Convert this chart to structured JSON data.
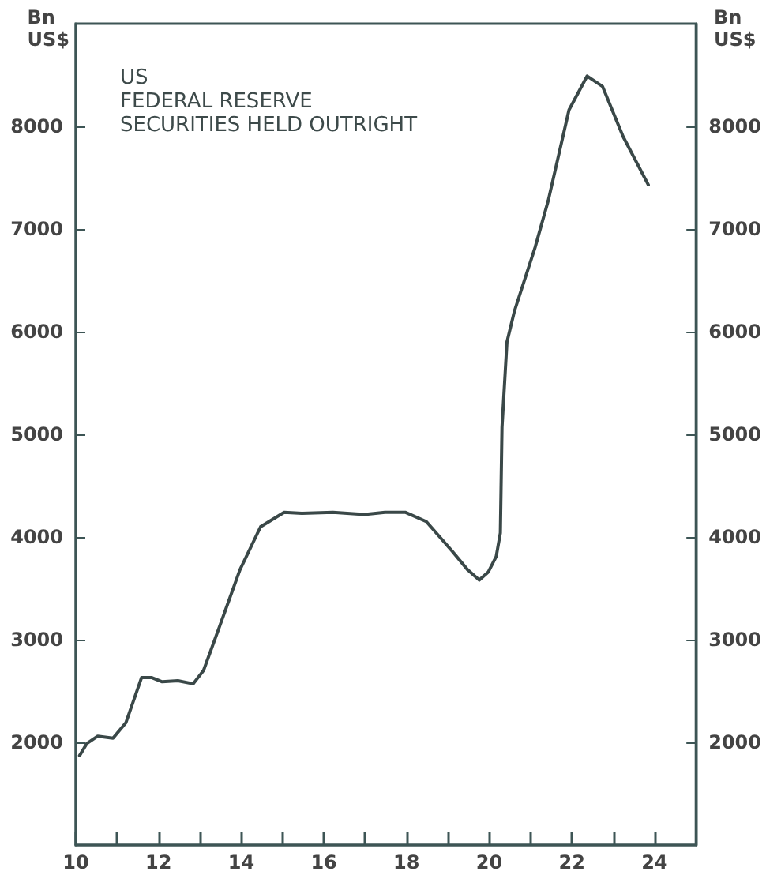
{
  "chart_data": {
    "type": "line",
    "title": "US\nFEDERAL RESERVE\nSECURITIES HELD OUTRIGHT",
    "ylabel": "Bn\nUS$",
    "y2label": "Bn\nUS$",
    "x": [
      10.09,
      10.27,
      10.53,
      10.9,
      11.21,
      11.59,
      11.84,
      12.09,
      12.47,
      12.84,
      13.09,
      13.47,
      13.97,
      14.47,
      15.04,
      15.47,
      16.22,
      16.98,
      17.48,
      17.98,
      18.48,
      19.11,
      19.48,
      19.76,
      19.98,
      20.17,
      20.27,
      20.31,
      20.43,
      20.61,
      21.11,
      21.43,
      21.93,
      22.37,
      22.74,
      23.24,
      23.85
    ],
    "series": [
      {
        "color": "#3a4848",
        "values": [
          1870,
          1990,
          2060,
          2040,
          2190,
          2630,
          2630,
          2590,
          2600,
          2570,
          2700,
          3120,
          3680,
          4100,
          4240,
          4230,
          4240,
          4220,
          4240,
          4240,
          4150,
          3860,
          3680,
          3580,
          3660,
          3810,
          4040,
          5070,
          5900,
          6200,
          6820,
          7280,
          8160,
          8490,
          8390,
          7900,
          7430
        ]
      }
    ],
    "xlim": [
      10,
      25
    ],
    "xticks": [
      10,
      {
        "value": 11,
        "label": null
      },
      12,
      {
        "value": 13,
        "label": null
      },
      14,
      {
        "value": 15,
        "label": null
      },
      16,
      {
        "value": 17,
        "label": null
      },
      18,
      {
        "value": 19,
        "label": null
      },
      20,
      {
        "value": 21,
        "label": null
      },
      22,
      {
        "value": 23,
        "label": null
      },
      24
    ],
    "ylim": [
      1000,
      9000
    ],
    "yticks": [
      2000,
      3000,
      4000,
      5000,
      6000,
      7000,
      8000
    ],
    "y2lim": [
      1000,
      9000
    ],
    "y2ticks": [
      2000,
      3000,
      4000,
      5000,
      6000,
      7000,
      8000
    ],
    "grid": false,
    "marker": "none",
    "line_style": "solid"
  }
}
